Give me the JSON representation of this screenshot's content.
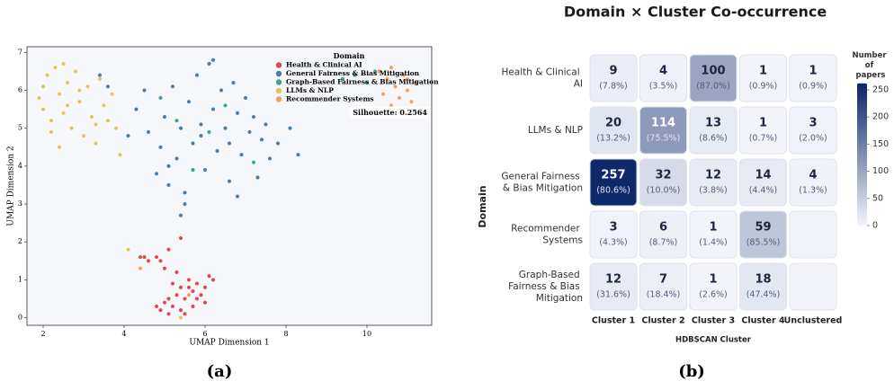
{
  "chart_data": [
    {
      "type": "scatter",
      "panel_label": "(a)",
      "xlabel": "UMAP Dimension 1",
      "ylabel": "UMAP Dimension 2",
      "legend_title": "Domain",
      "legend": "upper right",
      "annotation": "Silhouette: 0.2564",
      "xlim": [
        1.6,
        11.6
      ],
      "ylim": [
        -0.2,
        7.15
      ],
      "xticks": [
        2,
        4,
        6,
        8,
        10
      ],
      "yticks": [
        0,
        1,
        2,
        3,
        4,
        5,
        6,
        7
      ],
      "series": [
        {
          "name": "Health & Clinical AI",
          "color": "#e2454f",
          "x": [
            4.9,
            5.0,
            5.1,
            5.2,
            5.3,
            5.4,
            5.5,
            5.6,
            5.7,
            5.8,
            5.9,
            6.0,
            6.1,
            5.2,
            5.0,
            4.9,
            4.8,
            5.3,
            5.6,
            5.8,
            5.5,
            4.5,
            4.6,
            4.4,
            5.4,
            5.1,
            6.2,
            5.7,
            5.1,
            5.4,
            4.8,
            6.0
          ],
          "values": [
            0.2,
            0.4,
            0.1,
            0.3,
            0.6,
            0.2,
            0.5,
            0.8,
            0.3,
            0.9,
            0.6,
            0.8,
            1.1,
            0.9,
            1.3,
            1.5,
            1.6,
            1.2,
            1.0,
            0.5,
            0.1,
            1.6,
            1.5,
            1.6,
            2.1,
            1.8,
            1.0,
            0.7,
            0.5,
            0.8,
            0.3,
            0.4
          ]
        },
        {
          "name": "General Fairness & Bias Mitigation",
          "color": "#4a7ca6",
          "x": [
            4.3,
            4.5,
            4.6,
            4.8,
            4.9,
            5.0,
            5.1,
            5.2,
            5.3,
            5.4,
            5.5,
            5.6,
            5.7,
            5.8,
            5.9,
            6.0,
            6.1,
            6.2,
            6.3,
            6.4,
            6.5,
            6.6,
            6.7,
            6.8,
            6.9,
            7.0,
            7.1,
            7.2,
            7.3,
            7.4,
            7.5,
            7.6,
            7.8,
            8.1,
            8.3,
            5.1,
            5.4,
            5.5,
            6.2,
            3.4,
            3.6,
            4.1,
            6.6,
            6.8,
            5.9
          ],
          "values": [
            5.5,
            6.0,
            4.9,
            3.8,
            4.5,
            5.3,
            3.5,
            6.1,
            4.2,
            5.0,
            3.3,
            5.7,
            4.6,
            6.4,
            5.1,
            3.9,
            6.7,
            5.5,
            4.4,
            6.0,
            5.0,
            4.6,
            6.2,
            5.4,
            4.3,
            5.8,
            4.9,
            5.3,
            3.7,
            4.7,
            5.1,
            4.2,
            4.6,
            5.0,
            4.3,
            4.0,
            2.7,
            3.0,
            6.8,
            6.4,
            6.1,
            4.8,
            3.6,
            3.2,
            4.8
          ]
        },
        {
          "name": "Graph-Based Fairness & Bias Mitigation",
          "color": "#3aa394",
          "x": [
            5.3,
            6.1,
            6.5,
            7.2,
            5.7,
            9.4,
            9.7,
            10.0,
            10.2,
            4.9
          ],
          "values": [
            5.2,
            4.9,
            5.6,
            4.1,
            3.9,
            6.3,
            6.4,
            6.2,
            6.5,
            5.8
          ]
        },
        {
          "name": "LLMs & NLP",
          "color": "#e9c260",
          "x": [
            1.9,
            2.0,
            2.1,
            2.2,
            2.3,
            2.4,
            2.5,
            2.6,
            2.7,
            2.8,
            2.9,
            3.0,
            3.1,
            3.2,
            3.3,
            3.4,
            3.5,
            3.6,
            3.7,
            2.2,
            2.5,
            2.9,
            3.9,
            4.1,
            5.4,
            2.0,
            2.6,
            3.3,
            3.8,
            2.4
          ],
          "values": [
            5.8,
            5.5,
            6.4,
            5.2,
            6.6,
            5.9,
            5.4,
            6.2,
            5.0,
            6.5,
            5.7,
            4.8,
            6.1,
            5.3,
            4.6,
            6.3,
            5.6,
            5.2,
            5.9,
            4.9,
            6.7,
            6.0,
            4.3,
            1.8,
            0.0,
            6.1,
            5.6,
            5.1,
            5.0,
            4.5
          ]
        },
        {
          "name": "Recommender Systems",
          "color": "#f3a05f",
          "x": [
            10.4,
            10.5,
            10.6,
            10.7,
            10.8,
            10.9,
            11.0,
            11.1,
            11.2,
            10.3,
            10.6,
            10.9,
            5.6,
            4.4,
            11.0
          ],
          "values": [
            5.9,
            6.3,
            5.6,
            6.1,
            5.8,
            6.4,
            6.0,
            5.7,
            6.2,
            6.5,
            6.6,
            5.5,
            0.6,
            1.3,
            6.3
          ]
        }
      ]
    },
    {
      "type": "heatmap",
      "panel_label": "(b)",
      "title": "Domain × Cluster Co-occurrence",
      "xlabel": "HDBSCAN Cluster",
      "ylabel": "Domain",
      "columns": [
        "Cluster 1",
        "Cluster 2",
        "Cluster 3",
        "Cluster 4",
        "Unclustered"
      ],
      "rows": [
        "Health & Clinical AI",
        "LLMs & NLP",
        "General Fairness & Bias Mitigation",
        "Recommender Systems",
        "Graph-Based Fairness & Bias Mitigation"
      ],
      "values": [
        [
          9,
          4,
          100,
          1,
          1
        ],
        [
          20,
          114,
          13,
          1,
          3
        ],
        [
          257,
          32,
          12,
          14,
          4
        ],
        [
          3,
          6,
          1,
          59,
          null
        ],
        [
          12,
          7,
          1,
          18,
          null
        ]
      ],
      "cell_labels": [
        [
          "(7.8%)",
          "(3.5%)",
          "(87.0%)",
          "(0.9%)",
          "(0.9%)"
        ],
        [
          "(13.2%)",
          "(75.5%)",
          "(8.6%)",
          "(0.7%)",
          "(2.0%)"
        ],
        [
          "(80.6%)",
          "(10.0%)",
          "(3.8%)",
          "(4.4%)",
          "(1.3%)"
        ],
        [
          "(4.3%)",
          "(8.7%)",
          "(1.4%)",
          "(85.5%)",
          null
        ],
        [
          "(31.6%)",
          "(18.4%)",
          "(2.6%)",
          "(47.4%)",
          null
        ]
      ],
      "colorbar_title": "Number of papers",
      "clim": [
        0,
        262
      ],
      "cticks": [
        0,
        50,
        100,
        150,
        200,
        250
      ],
      "color_low": "#f3f5fb",
      "color_high": "#0b2466"
    }
  ]
}
